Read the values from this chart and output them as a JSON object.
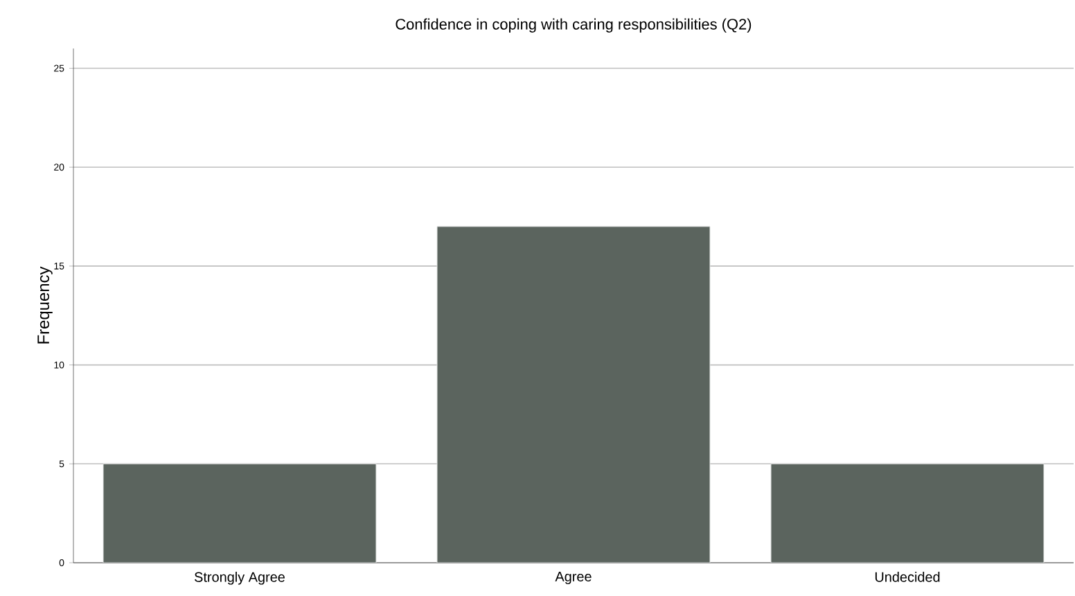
{
  "chart_data": {
    "type": "bar",
    "title": "Confidence in coping with caring responsibilities (Q2)",
    "ylabel": "Frequency",
    "categories": [
      "Strongly Agree",
      "Agree",
      "Undecided"
    ],
    "values": [
      5,
      17,
      5
    ],
    "color": "#5b645e",
    "ylim": [
      0,
      26
    ],
    "yticks": [
      0,
      5,
      10,
      15,
      20,
      25
    ],
    "grid": "y"
  }
}
